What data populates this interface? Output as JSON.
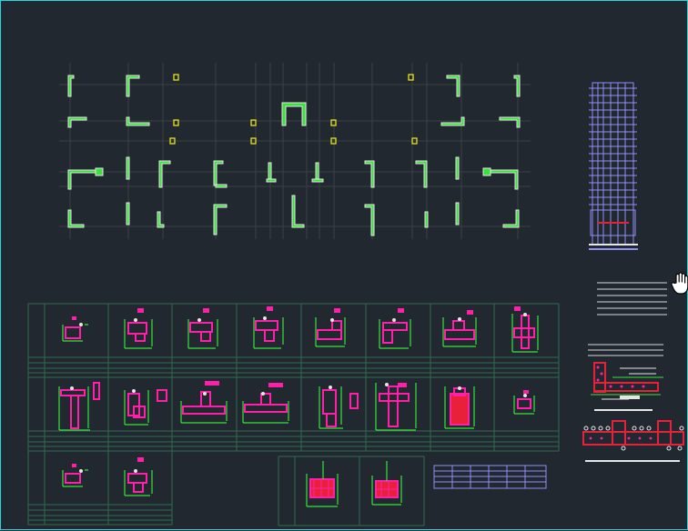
{
  "canvas": {
    "background": "#212830",
    "frame_color": "#24d6e0",
    "layers": {
      "axis": "#3a3f44",
      "wall_outline": "#e6e6e6",
      "wall_fill": "#39e23a",
      "small_column": "#e8e21c",
      "rebar_main": "#ff1fa8",
      "rebar_alt": "#e8203a",
      "dimension": "#39e23a",
      "table_grid": "#2f6b4f",
      "elevation": "#8f8ff5",
      "notes": "#d8d8d8"
    }
  },
  "cursor": {
    "icon": "hand-pan-icon"
  }
}
